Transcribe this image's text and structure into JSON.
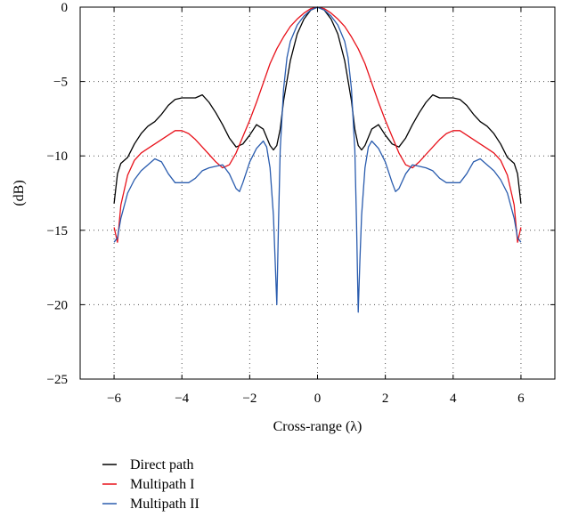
{
  "chart_data": {
    "type": "line",
    "xlabel": "Cross-range (λ)",
    "ylabel": "(dB)",
    "xlim": [
      -7,
      7
    ],
    "ylim": [
      -25,
      0
    ],
    "xticks": [
      -6,
      -4,
      -2,
      0,
      2,
      4,
      6
    ],
    "xtick_labels": [
      "−6",
      "−4",
      "−2",
      "0",
      "2",
      "4",
      "6"
    ],
    "yticks": [
      0,
      -5,
      -10,
      -15,
      -20,
      -25
    ],
    "ytick_labels": [
      "0",
      "−5",
      "−10",
      "−15",
      "−20",
      "−25"
    ],
    "grid": "dotted",
    "legend_position": "below",
    "series": [
      {
        "name": "Direct path",
        "color": "#000000",
        "x": [
          -6.0,
          -5.9,
          -5.8,
          -5.6,
          -5.4,
          -5.2,
          -5.0,
          -4.8,
          -4.6,
          -4.4,
          -4.2,
          -4.0,
          -3.8,
          -3.6,
          -3.4,
          -3.2,
          -3.0,
          -2.8,
          -2.6,
          -2.4,
          -2.2,
          -2.0,
          -1.8,
          -1.6,
          -1.4,
          -1.3,
          -1.2,
          -1.1,
          -1.0,
          -0.8,
          -0.6,
          -0.4,
          -0.2,
          0.0,
          0.2,
          0.4,
          0.6,
          0.8,
          1.0,
          1.1,
          1.2,
          1.3,
          1.4,
          1.6,
          1.8,
          2.0,
          2.2,
          2.4,
          2.6,
          2.8,
          3.0,
          3.2,
          3.4,
          3.6,
          3.8,
          4.0,
          4.2,
          4.4,
          4.6,
          4.8,
          5.0,
          5.2,
          5.4,
          5.6,
          5.8,
          5.9,
          6.0
        ],
        "values": [
          -13.2,
          -11.2,
          -10.5,
          -10.1,
          -9.2,
          -8.5,
          -8.0,
          -7.7,
          -7.2,
          -6.6,
          -6.2,
          -6.1,
          -6.1,
          -6.1,
          -5.9,
          -6.4,
          -7.1,
          -7.9,
          -8.8,
          -9.4,
          -9.2,
          -8.6,
          -7.9,
          -8.2,
          -9.3,
          -9.6,
          -9.3,
          -8.2,
          -6.3,
          -3.6,
          -1.8,
          -0.8,
          -0.2,
          0.0,
          -0.2,
          -0.8,
          -1.8,
          -3.6,
          -6.3,
          -8.2,
          -9.3,
          -9.6,
          -9.3,
          -8.2,
          -7.9,
          -8.6,
          -9.2,
          -9.4,
          -8.8,
          -7.9,
          -7.1,
          -6.4,
          -5.9,
          -6.1,
          -6.1,
          -6.1,
          -6.2,
          -6.6,
          -7.2,
          -7.7,
          -8.0,
          -8.5,
          -9.2,
          -10.1,
          -10.5,
          -11.2,
          -13.2
        ]
      },
      {
        "name": "Multipath I",
        "color": "#e8121b",
        "x": [
          -6.0,
          -5.9,
          -5.8,
          -5.6,
          -5.4,
          -5.2,
          -5.0,
          -4.8,
          -4.6,
          -4.4,
          -4.2,
          -4.0,
          -3.8,
          -3.6,
          -3.4,
          -3.2,
          -3.0,
          -2.8,
          -2.6,
          -2.4,
          -2.2,
          -2.0,
          -1.8,
          -1.6,
          -1.4,
          -1.2,
          -1.0,
          -0.8,
          -0.6,
          -0.4,
          -0.2,
          0.0,
          0.2,
          0.4,
          0.6,
          0.8,
          1.0,
          1.2,
          1.4,
          1.6,
          1.8,
          2.0,
          2.2,
          2.4,
          2.6,
          2.8,
          3.0,
          3.2,
          3.4,
          3.6,
          3.8,
          4.0,
          4.2,
          4.4,
          4.6,
          4.8,
          5.0,
          5.2,
          5.4,
          5.6,
          5.8,
          5.9,
          6.0
        ],
        "values": [
          -14.8,
          -15.8,
          -13.3,
          -11.3,
          -10.3,
          -9.8,
          -9.5,
          -9.2,
          -8.9,
          -8.6,
          -8.3,
          -8.3,
          -8.5,
          -8.9,
          -9.4,
          -9.9,
          -10.4,
          -10.8,
          -10.6,
          -9.8,
          -8.7,
          -7.6,
          -6.4,
          -5.1,
          -3.8,
          -2.8,
          -2.0,
          -1.3,
          -0.8,
          -0.4,
          -0.1,
          0.0,
          -0.1,
          -0.4,
          -0.8,
          -1.3,
          -2.0,
          -2.8,
          -3.8,
          -5.1,
          -6.4,
          -7.6,
          -8.7,
          -9.8,
          -10.6,
          -10.8,
          -10.4,
          -9.9,
          -9.4,
          -8.9,
          -8.5,
          -8.3,
          -8.3,
          -8.6,
          -8.9,
          -9.2,
          -9.5,
          -9.8,
          -10.3,
          -11.3,
          -13.3,
          -15.8,
          -14.8
        ]
      },
      {
        "name": "Multipath II",
        "color": "#2a5cae",
        "x": [
          -6.0,
          -5.9,
          -5.8,
          -5.6,
          -5.4,
          -5.2,
          -5.0,
          -4.8,
          -4.6,
          -4.4,
          -4.2,
          -4.0,
          -3.8,
          -3.6,
          -3.4,
          -3.2,
          -3.0,
          -2.8,
          -2.6,
          -2.4,
          -2.3,
          -2.2,
          -2.0,
          -1.8,
          -1.6,
          -1.5,
          -1.4,
          -1.3,
          -1.25,
          -1.2,
          -1.15,
          -1.1,
          -1.0,
          -0.9,
          -0.8,
          -0.6,
          -0.4,
          -0.2,
          0.0,
          0.2,
          0.4,
          0.6,
          0.8,
          0.9,
          1.0,
          1.1,
          1.15,
          1.2,
          1.25,
          1.3,
          1.4,
          1.5,
          1.6,
          1.8,
          2.0,
          2.2,
          2.3,
          2.4,
          2.6,
          2.8,
          3.0,
          3.2,
          3.4,
          3.6,
          3.8,
          4.0,
          4.2,
          4.4,
          4.6,
          4.8,
          5.0,
          5.2,
          5.4,
          5.6,
          5.8,
          5.9,
          6.0
        ],
        "values": [
          -15.8,
          -15.5,
          -14.2,
          -12.5,
          -11.6,
          -11.0,
          -10.6,
          -10.2,
          -10.4,
          -11.2,
          -11.8,
          -11.8,
          -11.8,
          -11.5,
          -11.0,
          -10.8,
          -10.7,
          -10.6,
          -11.2,
          -12.2,
          -12.4,
          -11.8,
          -10.4,
          -9.5,
          -9.0,
          -9.4,
          -10.8,
          -14.0,
          -17.0,
          -20.0,
          -14.5,
          -9.6,
          -5.5,
          -3.4,
          -2.3,
          -1.2,
          -0.6,
          -0.2,
          0.0,
          -0.2,
          -0.6,
          -1.2,
          -2.3,
          -3.4,
          -5.5,
          -9.6,
          -14.5,
          -20.5,
          -17.0,
          -14.0,
          -10.8,
          -9.4,
          -9.0,
          -9.5,
          -10.4,
          -11.8,
          -12.4,
          -12.2,
          -11.2,
          -10.6,
          -10.7,
          -10.8,
          -11.0,
          -11.5,
          -11.8,
          -11.8,
          -11.8,
          -11.2,
          -10.4,
          -10.2,
          -10.6,
          -11.0,
          -11.6,
          -12.5,
          -14.2,
          -15.5,
          -15.8
        ]
      }
    ]
  }
}
